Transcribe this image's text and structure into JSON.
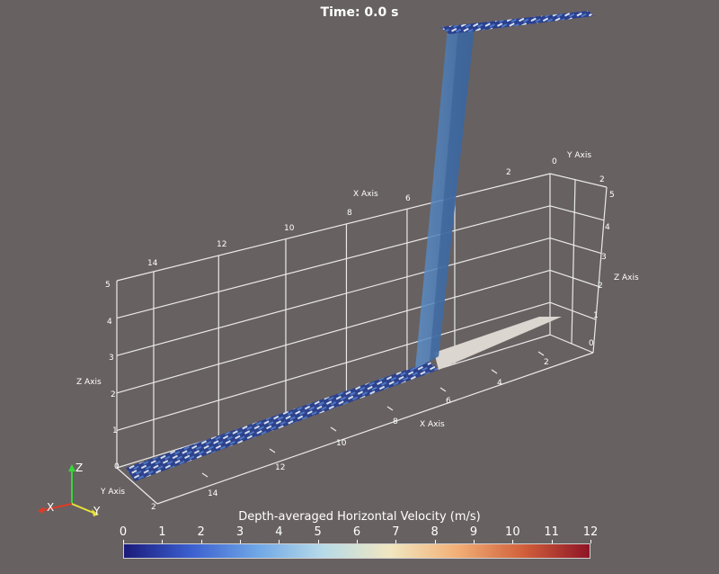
{
  "title": "Time: 0.0 s",
  "colors": {
    "background": "#686161",
    "grid": "#e9e9e9",
    "wall": "#4f7fb5",
    "sand": "#dcd6d0",
    "axis_x": "#e03a28",
    "axis_y": "#e8e23a",
    "axis_z": "#38d63a"
  },
  "axes": {
    "x_title": "X Axis",
    "y_title": "Y Axis",
    "z_title": "Z Axis",
    "x_ticks_top": [
      "14",
      "12",
      "10",
      "8",
      "6"
    ],
    "x_ticks_bottom": [
      "2",
      "4",
      "6",
      "8",
      "10",
      "12",
      "14"
    ],
    "y_ticks_top": [
      "2",
      "0"
    ],
    "y_tick_bottom": "2",
    "z_ticks_left": [
      "0",
      "1",
      "2",
      "3",
      "4",
      "5"
    ],
    "z_ticks_right": [
      "0",
      "1",
      "2",
      "3",
      "4",
      "5"
    ],
    "y_right_top": "2"
  },
  "orientation": {
    "x": "X",
    "y": "Y",
    "z": "Z"
  },
  "colorbar": {
    "title": "Depth-averaged Horizontal Velocity (m/s)",
    "ticks": [
      "0",
      "1",
      "2",
      "3",
      "4",
      "5",
      "6",
      "7",
      "8",
      "9",
      "10",
      "11",
      "12"
    ],
    "min": 0,
    "max": 12,
    "colors": [
      "#1a1a7a",
      "#3b5fcf",
      "#6fa6e6",
      "#b7dbe8",
      "#f1e7c0",
      "#f2b077",
      "#d1603b",
      "#8e1426"
    ]
  }
}
